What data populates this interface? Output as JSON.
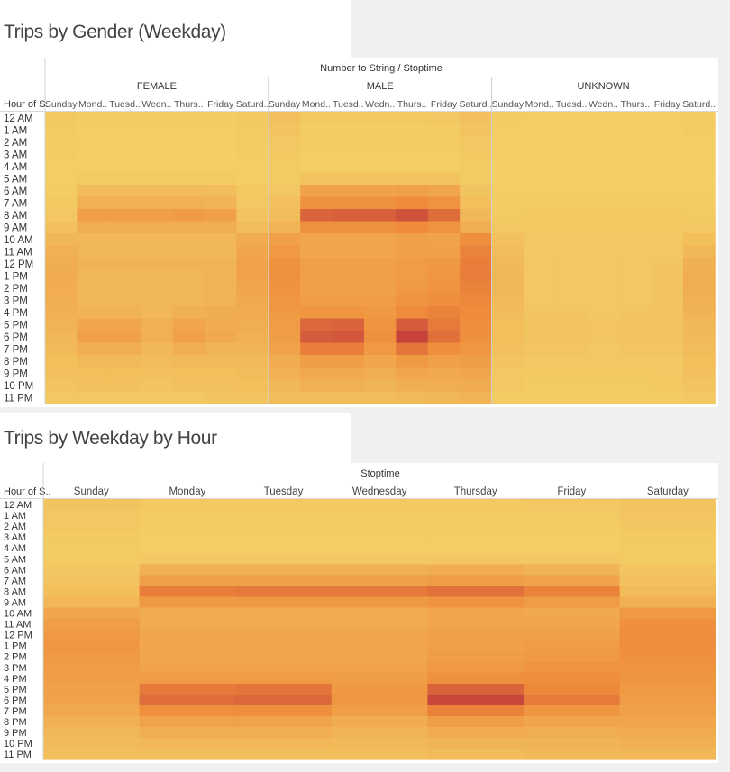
{
  "colors": {
    "scale_low": "#f3cf66",
    "scale_mid": "#ef8b3a",
    "scale_high": "#b21f3c",
    "background": "#f0f0f0",
    "panel": "#ffffff"
  },
  "chart_data": [
    {
      "type": "heatmap",
      "title": "Trips by Gender (Weekday)",
      "column_header": "Number to String / Stoptime",
      "row_header": "Hour of S..",
      "groups": [
        "FEMALE",
        "MALE",
        "UNKNOWN"
      ],
      "columns": [
        "Sunday",
        "Mond..",
        "Tuesd..",
        "Wedn..",
        "Thurs..",
        "Friday",
        "Saturd.."
      ],
      "rows": [
        "12 AM",
        "1 AM",
        "2 AM",
        "3 AM",
        "4 AM",
        "5 AM",
        "6 AM",
        "7 AM",
        "8 AM",
        "9 AM",
        "10 AM",
        "11 AM",
        "12 PM",
        "1 PM",
        "2 PM",
        "3 PM",
        "4 PM",
        "5 PM",
        "6 PM",
        "7 PM",
        "8 PM",
        "9 PM",
        "10 PM",
        "11 PM"
      ],
      "value_scale": "relative trip volume 0–100",
      "values": {
        "FEMALE": [
          [
            4,
            2,
            2,
            2,
            2,
            2,
            4
          ],
          [
            3,
            1,
            1,
            1,
            1,
            1,
            3
          ],
          [
            2,
            1,
            1,
            1,
            1,
            1,
            3
          ],
          [
            2,
            0,
            0,
            0,
            0,
            0,
            2
          ],
          [
            1,
            0,
            0,
            0,
            0,
            0,
            1
          ],
          [
            1,
            3,
            3,
            3,
            3,
            3,
            1
          ],
          [
            2,
            14,
            14,
            14,
            14,
            13,
            4
          ],
          [
            4,
            22,
            22,
            22,
            22,
            20,
            6
          ],
          [
            6,
            35,
            35,
            35,
            38,
            34,
            9
          ],
          [
            10,
            24,
            24,
            24,
            24,
            24,
            14
          ],
          [
            18,
            18,
            18,
            18,
            18,
            18,
            26
          ],
          [
            22,
            18,
            18,
            18,
            18,
            18,
            30
          ],
          [
            24,
            20,
            20,
            20,
            20,
            20,
            32
          ],
          [
            26,
            18,
            18,
            18,
            18,
            20,
            32
          ],
          [
            25,
            18,
            18,
            18,
            18,
            20,
            30
          ],
          [
            24,
            18,
            18,
            18,
            18,
            20,
            28
          ],
          [
            22,
            20,
            20,
            18,
            22,
            24,
            26
          ],
          [
            20,
            30,
            30,
            22,
            30,
            26,
            24
          ],
          [
            18,
            34,
            34,
            22,
            34,
            28,
            22
          ],
          [
            16,
            24,
            24,
            18,
            24,
            20,
            20
          ],
          [
            12,
            16,
            16,
            14,
            16,
            16,
            16
          ],
          [
            10,
            12,
            12,
            10,
            12,
            12,
            14
          ],
          [
            8,
            10,
            10,
            8,
            10,
            10,
            12
          ],
          [
            6,
            6,
            6,
            6,
            6,
            8,
            8
          ]
        ],
        "MALE": [
          [
            10,
            4,
            4,
            4,
            4,
            5,
            10
          ],
          [
            8,
            2,
            2,
            2,
            2,
            3,
            8
          ],
          [
            6,
            2,
            2,
            2,
            2,
            2,
            6
          ],
          [
            4,
            1,
            1,
            1,
            1,
            1,
            4
          ],
          [
            3,
            1,
            1,
            1,
            1,
            1,
            3
          ],
          [
            3,
            8,
            8,
            8,
            8,
            8,
            3
          ],
          [
            6,
            32,
            32,
            32,
            34,
            30,
            8
          ],
          [
            10,
            45,
            45,
            45,
            50,
            44,
            12
          ],
          [
            14,
            68,
            70,
            70,
            76,
            64,
            18
          ],
          [
            20,
            46,
            46,
            46,
            50,
            44,
            24
          ],
          [
            34,
            30,
            30,
            30,
            34,
            32,
            48
          ],
          [
            40,
            30,
            30,
            30,
            34,
            34,
            54
          ],
          [
            44,
            34,
            34,
            34,
            38,
            40,
            56
          ],
          [
            46,
            34,
            34,
            34,
            38,
            42,
            56
          ],
          [
            44,
            34,
            34,
            34,
            40,
            44,
            54
          ],
          [
            42,
            36,
            36,
            36,
            44,
            48,
            52
          ],
          [
            40,
            42,
            42,
            40,
            50,
            54,
            50
          ],
          [
            38,
            66,
            68,
            44,
            72,
            58,
            48
          ],
          [
            36,
            72,
            74,
            46,
            84,
            62,
            46
          ],
          [
            32,
            56,
            56,
            40,
            60,
            48,
            42
          ],
          [
            26,
            36,
            36,
            30,
            40,
            34,
            36
          ],
          [
            22,
            28,
            28,
            24,
            30,
            28,
            30
          ],
          [
            18,
            22,
            22,
            20,
            24,
            24,
            26
          ],
          [
            14,
            14,
            14,
            14,
            16,
            18,
            20
          ]
        ],
        "UNKNOWN": [
          [
            2,
            1,
            1,
            1,
            1,
            1,
            2
          ],
          [
            1,
            0,
            0,
            0,
            0,
            0,
            2
          ],
          [
            1,
            0,
            0,
            0,
            0,
            0,
            1
          ],
          [
            1,
            0,
            0,
            0,
            0,
            0,
            1
          ],
          [
            0,
            0,
            0,
            0,
            0,
            0,
            1
          ],
          [
            0,
            0,
            0,
            0,
            0,
            0,
            0
          ],
          [
            1,
            1,
            1,
            1,
            1,
            1,
            1
          ],
          [
            2,
            2,
            2,
            2,
            2,
            2,
            2
          ],
          [
            3,
            4,
            4,
            4,
            4,
            4,
            3
          ],
          [
            5,
            4,
            4,
            4,
            4,
            4,
            6
          ],
          [
            10,
            5,
            5,
            5,
            5,
            5,
            12
          ],
          [
            14,
            5,
            5,
            5,
            5,
            6,
            18
          ],
          [
            16,
            6,
            6,
            6,
            6,
            7,
            22
          ],
          [
            18,
            6,
            6,
            6,
            6,
            8,
            24
          ],
          [
            18,
            6,
            6,
            6,
            6,
            8,
            24
          ],
          [
            16,
            6,
            6,
            6,
            6,
            8,
            22
          ],
          [
            14,
            7,
            7,
            6,
            7,
            8,
            20
          ],
          [
            12,
            8,
            8,
            7,
            8,
            8,
            18
          ],
          [
            12,
            8,
            8,
            7,
            8,
            8,
            16
          ],
          [
            10,
            7,
            7,
            6,
            7,
            7,
            14
          ],
          [
            8,
            5,
            5,
            5,
            5,
            6,
            12
          ],
          [
            6,
            4,
            4,
            4,
            4,
            5,
            10
          ],
          [
            5,
            3,
            3,
            3,
            3,
            4,
            8
          ],
          [
            3,
            2,
            2,
            2,
            2,
            3,
            6
          ]
        ]
      }
    },
    {
      "type": "heatmap",
      "title": "Trips by Weekday by Hour",
      "column_header": "Stoptime",
      "row_header": "Hour of S..",
      "columns": [
        "Sunday",
        "Monday",
        "Tuesday",
        "Wednesday",
        "Thursday",
        "Friday",
        "Saturday"
      ],
      "rows": [
        "12 AM",
        "1 AM",
        "2 AM",
        "3 AM",
        "4 AM",
        "5 AM",
        "6 AM",
        "7 AM",
        "8 AM",
        "9 AM",
        "10 AM",
        "11 AM",
        "12 PM",
        "1 PM",
        "2 PM",
        "3 PM",
        "4 PM",
        "5 PM",
        "6 PM",
        "7 PM",
        "8 PM",
        "9 PM",
        "10 PM",
        "11 PM"
      ],
      "value_scale": "relative trip volume 0–100",
      "values": [
        [
          8,
          4,
          4,
          4,
          4,
          5,
          9
        ],
        [
          6,
          2,
          2,
          2,
          2,
          3,
          7
        ],
        [
          5,
          2,
          2,
          2,
          2,
          2,
          5
        ],
        [
          3,
          1,
          1,
          1,
          1,
          1,
          3
        ],
        [
          3,
          1,
          1,
          1,
          1,
          1,
          3
        ],
        [
          3,
          6,
          6,
          6,
          6,
          6,
          3
        ],
        [
          5,
          22,
          22,
          22,
          24,
          20,
          7
        ],
        [
          8,
          34,
          34,
          34,
          36,
          32,
          10
        ],
        [
          12,
          56,
          58,
          58,
          62,
          54,
          15
        ],
        [
          18,
          40,
          40,
          40,
          44,
          38,
          22
        ],
        [
          30,
          26,
          26,
          26,
          30,
          28,
          40
        ],
        [
          36,
          26,
          26,
          26,
          30,
          30,
          46
        ],
        [
          40,
          30,
          30,
          30,
          34,
          34,
          48
        ],
        [
          42,
          30,
          30,
          30,
          34,
          38,
          48
        ],
        [
          40,
          30,
          30,
          30,
          36,
          40,
          46
        ],
        [
          38,
          32,
          32,
          32,
          40,
          44,
          44
        ],
        [
          36,
          38,
          38,
          36,
          46,
          48,
          42
        ],
        [
          34,
          58,
          60,
          40,
          68,
          52,
          40
        ],
        [
          32,
          64,
          66,
          42,
          82,
          58,
          38
        ],
        [
          28,
          48,
          48,
          36,
          54,
          42,
          34
        ],
        [
          22,
          32,
          32,
          26,
          36,
          30,
          30
        ],
        [
          18,
          24,
          24,
          20,
          26,
          24,
          26
        ],
        [
          15,
          18,
          18,
          16,
          20,
          20,
          22
        ],
        [
          12,
          12,
          12,
          12,
          14,
          16,
          18
        ]
      ]
    }
  ]
}
